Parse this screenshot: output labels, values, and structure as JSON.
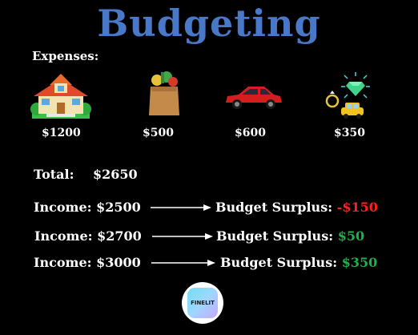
{
  "title": "Budgeting",
  "expenses_label": "Expenses:",
  "expenses": [
    {
      "icon": "house-icon",
      "amount": "$1200"
    },
    {
      "icon": "groceries-icon",
      "amount": "$500"
    },
    {
      "icon": "car-icon",
      "amount": "$600"
    },
    {
      "icon": "luxury-icon",
      "amount": "$350"
    }
  ],
  "total": {
    "label": "Total:",
    "value": "$2650"
  },
  "scenarios": [
    {
      "income": "Income: $2500",
      "surplus_label": "Budget Surplus:",
      "surplus_value": "-$150"
    },
    {
      "income": "Income: $2700",
      "surplus_label": "Budget Surplus:",
      "surplus_value": "$50"
    },
    {
      "income": "Income: $3000",
      "surplus_label": "Budget Surplus:",
      "surplus_value": "$350"
    }
  ],
  "logo_text": "FINELIT",
  "colors": {
    "title": "#4a78c8",
    "negative": "#ff2020",
    "positive": "#19b34a",
    "background": "#000000"
  }
}
